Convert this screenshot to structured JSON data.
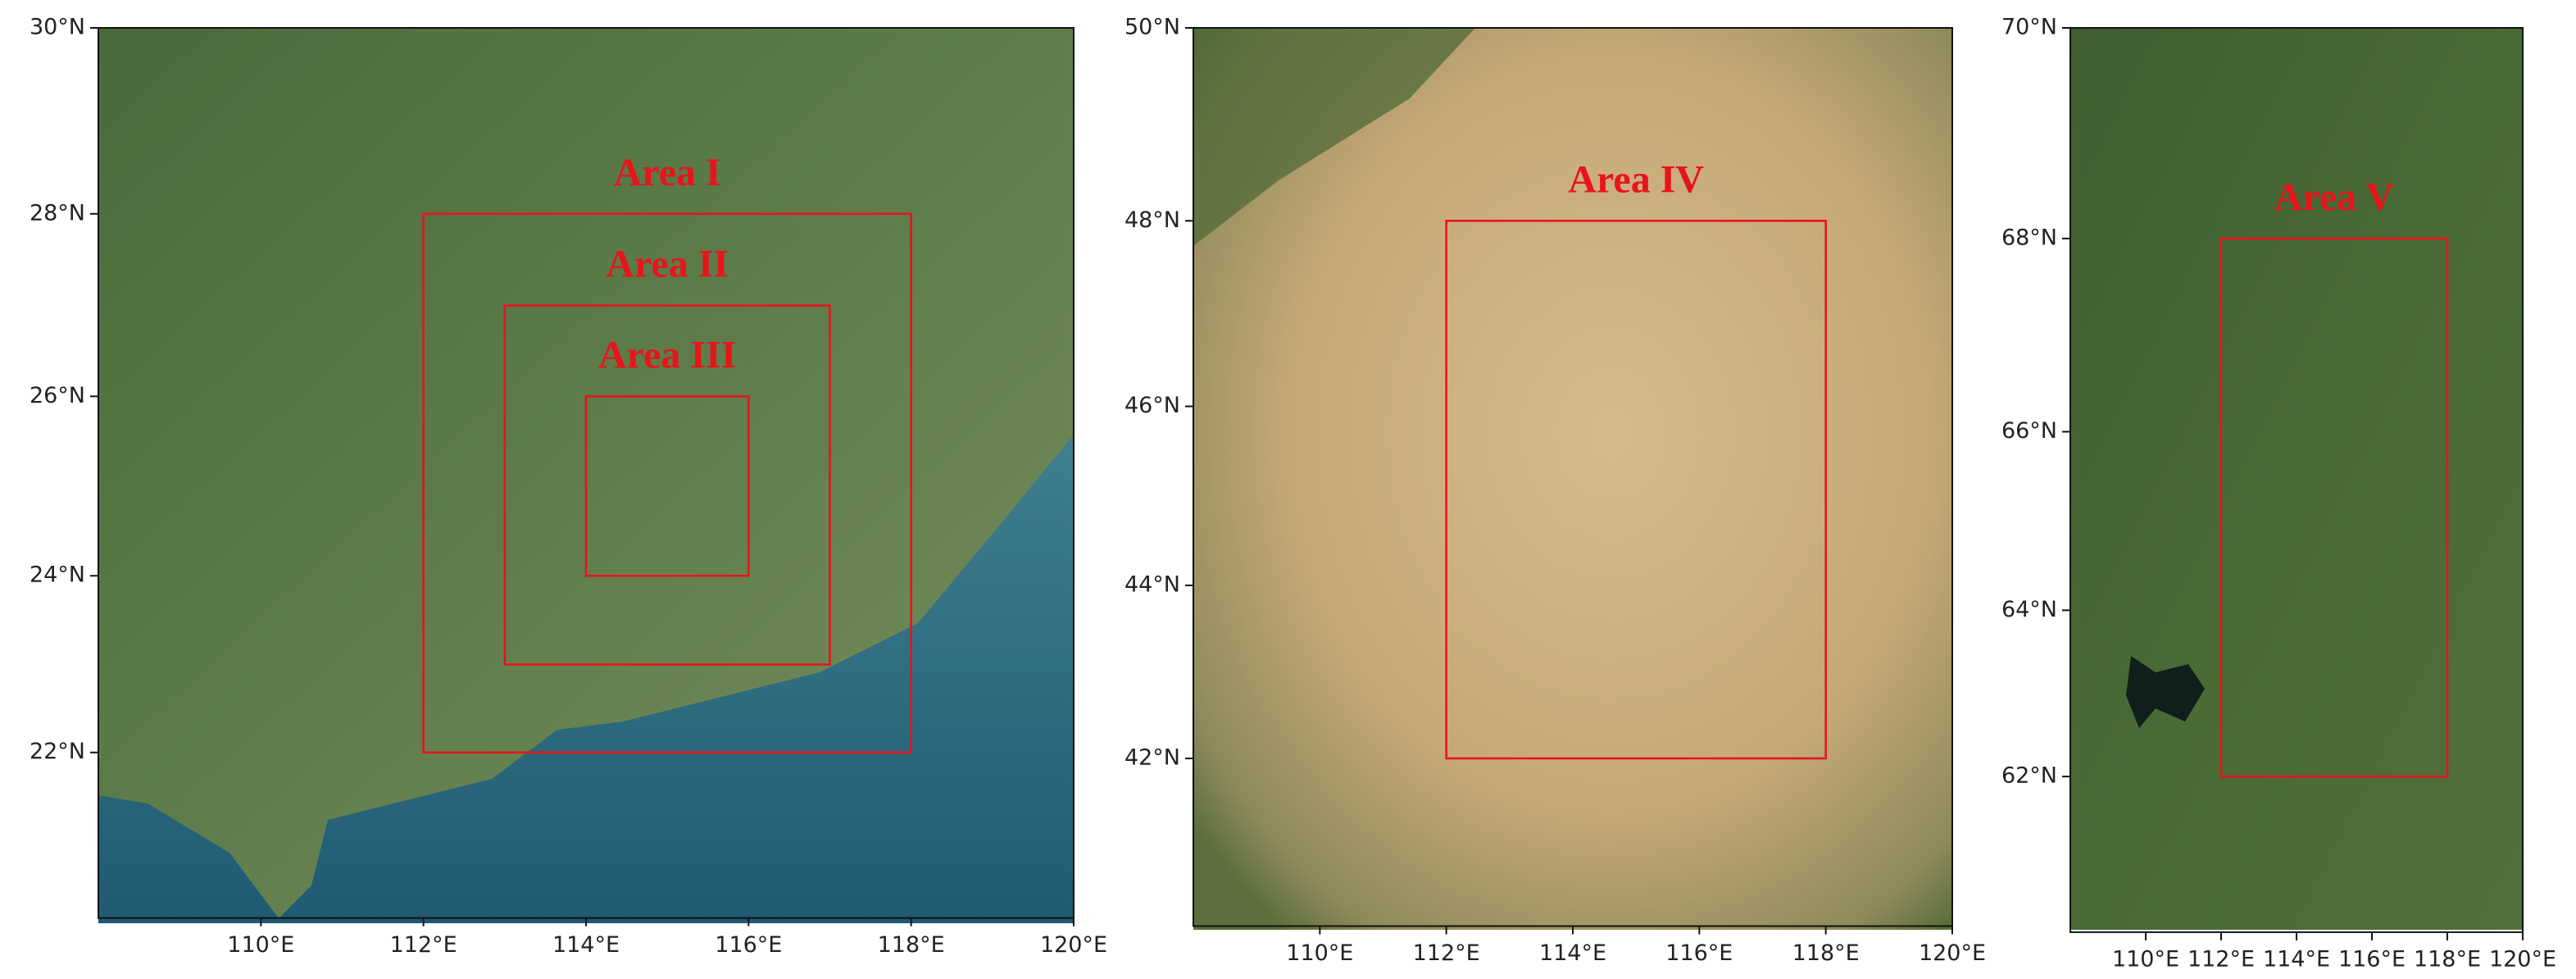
{
  "maps": [
    {
      "xlim": [
        108,
        120
      ],
      "ylim": [
        20.1,
        30
      ],
      "xticks": [
        {
          "value": 110,
          "label": "110°E"
        },
        {
          "value": 112,
          "label": "112°E"
        },
        {
          "value": 114,
          "label": "114°E"
        },
        {
          "value": 116,
          "label": "116°E"
        },
        {
          "value": 118,
          "label": "118°E"
        },
        {
          "value": 120,
          "label": "120°E"
        }
      ],
      "yticks": [
        {
          "value": 22,
          "label": "22°N"
        },
        {
          "value": 24,
          "label": "24°N"
        },
        {
          "value": 26,
          "label": "26°N"
        },
        {
          "value": 28,
          "label": "28°N"
        },
        {
          "value": 30,
          "label": "30°N"
        }
      ],
      "areas": [
        {
          "label": "Area I",
          "lon": [
            112,
            118
          ],
          "lat": [
            22,
            28
          ]
        },
        {
          "label": "Area II",
          "lon": [
            113,
            117
          ],
          "lat": [
            23,
            27
          ]
        },
        {
          "label": "Area III",
          "lon": [
            114,
            116
          ],
          "lat": [
            24,
            26
          ]
        }
      ]
    },
    {
      "xlim": [
        108,
        120
      ],
      "ylim": [
        40,
        50
      ],
      "xticks": [
        {
          "value": 110,
          "label": "110°E"
        },
        {
          "value": 112,
          "label": "112°E"
        },
        {
          "value": 114,
          "label": "114°E"
        },
        {
          "value": 116,
          "label": "116°E"
        },
        {
          "value": 118,
          "label": "118°E"
        },
        {
          "value": 120,
          "label": "120°E"
        }
      ],
      "yticks": [
        {
          "value": 42,
          "label": "42°N"
        },
        {
          "value": 44,
          "label": "44°N"
        },
        {
          "value": 46,
          "label": "46°N"
        },
        {
          "value": 48,
          "label": "48°N"
        },
        {
          "value": 50,
          "label": "50°N"
        }
      ],
      "areas": [
        {
          "label": "Area IV",
          "lon": [
            112,
            118
          ],
          "lat": [
            42,
            48
          ]
        }
      ]
    },
    {
      "xlim": [
        108,
        120
      ],
      "ylim": [
        60,
        70
      ],
      "xticks": [
        {
          "value": 110,
          "label": "110°E"
        },
        {
          "value": 112,
          "label": "112°E"
        },
        {
          "value": 114,
          "label": "114°E"
        },
        {
          "value": 116,
          "label": "116°E"
        },
        {
          "value": 118,
          "label": "118°E"
        },
        {
          "value": 120,
          "label": "120°E"
        }
      ],
      "yticks": [
        {
          "value": 62,
          "label": "62°N"
        },
        {
          "value": 64,
          "label": "64°N"
        },
        {
          "value": 66,
          "label": "66°N"
        },
        {
          "value": 68,
          "label": "68°N"
        },
        {
          "value": 70,
          "label": "70°N"
        }
      ],
      "areas": [
        {
          "label": "Area V",
          "lon": [
            112,
            118
          ],
          "lat": [
            62,
            68
          ]
        }
      ]
    }
  ]
}
